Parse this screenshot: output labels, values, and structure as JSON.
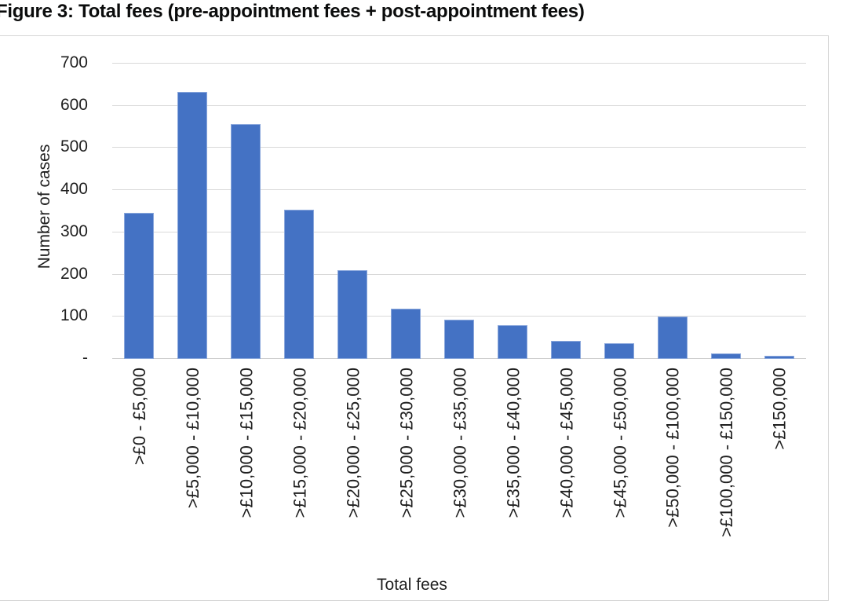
{
  "figure": {
    "title": "Figure 3: Total fees (pre-appointment fees + post-appointment fees)"
  },
  "chart_data": {
    "type": "bar",
    "title": "Figure 3: Total fees (pre-appointment fees + post-appointment fees)",
    "categories": [
      ">£0 - £5,000",
      ">£5,000 - £10,000",
      ">£10,000 - £15,000",
      ">£15,000 - £20,000",
      ">£20,000 - £25,000",
      ">£25,000 - £30,000",
      ">£30,000 - £35,000",
      ">£35,000 - £40,000",
      ">£40,000 - £45,000",
      ">£45,000 - £50,000",
      ">£50,000 - £100,000",
      ">£100,000 - £150,000",
      ">£150,000"
    ],
    "values": [
      347,
      633,
      556,
      354,
      211,
      120,
      94,
      80,
      43,
      38,
      100,
      13,
      8
    ],
    "xlabel": "Total fees",
    "ylabel": "Number of cases",
    "ylim": [
      0,
      700
    ],
    "ytick_values": [
      700,
      600,
      500,
      400,
      300,
      200,
      100,
      0
    ],
    "ytick_labels": [
      "700",
      "600",
      "500",
      "400",
      "300",
      "200",
      "100",
      "-"
    ],
    "grid": true,
    "legend": false,
    "bar_color": "#4472C4",
    "bar_border_color": "#8AA7DC",
    "gridline_color": "#D9D9D9",
    "baseline_color": "#CCCCCC",
    "axis_text_color": "#1F1F1F",
    "title_color": "#0B0C0C"
  }
}
